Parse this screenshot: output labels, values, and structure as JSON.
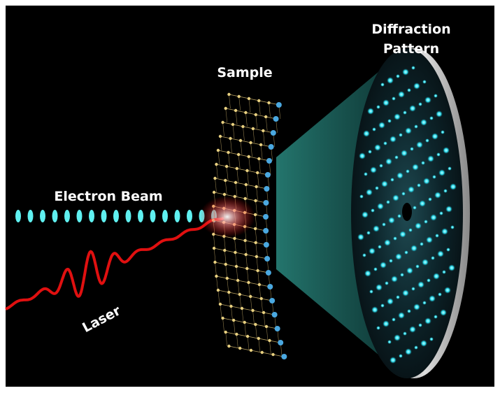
{
  "labels": {
    "diffraction_pattern": [
      "Diffraction",
      "Pattern"
    ],
    "sample": "Sample",
    "electron_beam": "Electron Beam",
    "laser": "Laser"
  }
}
